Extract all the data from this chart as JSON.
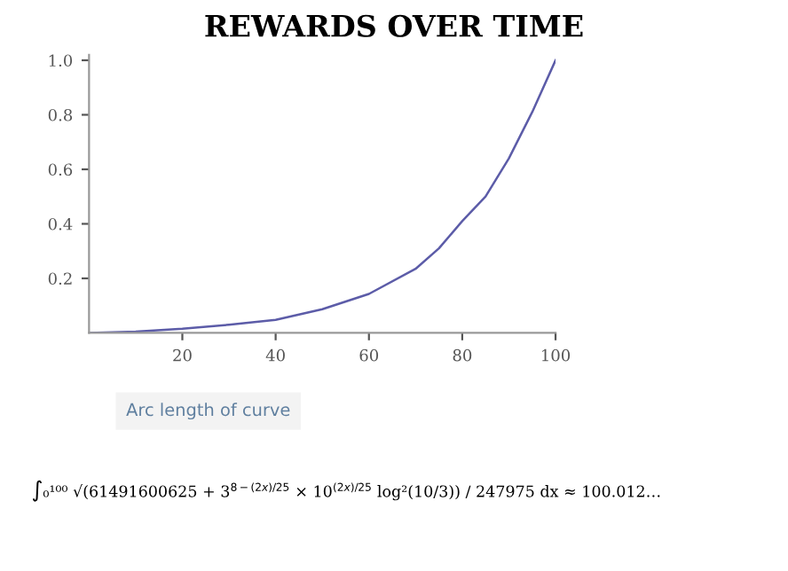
{
  "chart_data": {
    "type": "line",
    "title": "REWARDS OVER TIME",
    "x": [
      0,
      10,
      20,
      30,
      40,
      50,
      60,
      70,
      75,
      80,
      85,
      90,
      95,
      100
    ],
    "series": [
      {
        "color": "#5c5ca8",
        "values": [
          0.0,
          0.005,
          0.015,
          0.03,
          0.048,
          0.087,
          0.143,
          0.235,
          0.31,
          0.41,
          0.5,
          0.64,
          0.81,
          1.0
        ]
      }
    ],
    "xlim": [
      0,
      100
    ],
    "ylim": [
      0,
      1.02
    ],
    "xticks": [
      20,
      40,
      60,
      80,
      100
    ],
    "yticks": [
      0.2,
      0.4,
      0.6,
      0.8,
      {
        "value": 1,
        "label": "1.0"
      }
    ],
    "grid": false,
    "marker": "none",
    "line_style": "solid",
    "annotations": [
      "Arc length of curve",
      "∫₀¹⁰⁰ √(61491600625 + 3$^{8−(2x)/25}$ × 10$^{(2x)/25}$ log²(10/3)) / 247975 dx ≈ 100.012…"
    ]
  }
}
